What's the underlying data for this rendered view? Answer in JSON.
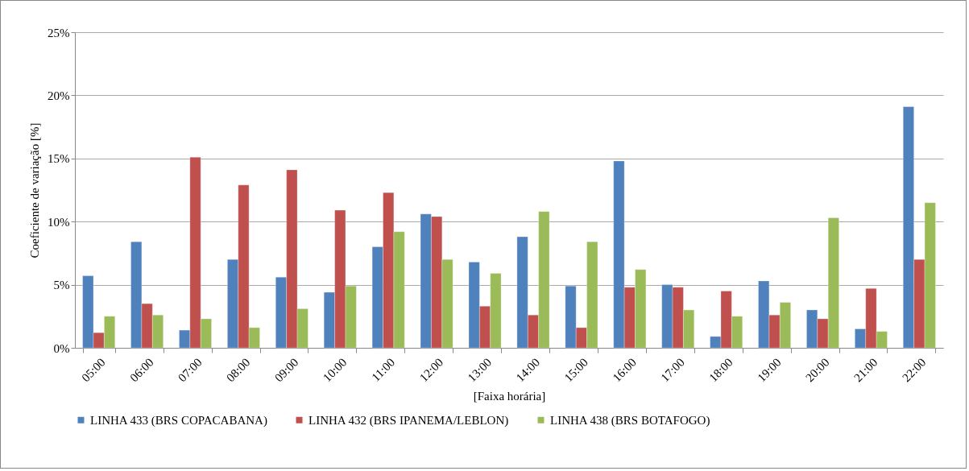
{
  "chart_data": {
    "type": "bar",
    "xlabel": "[Faixa horária]",
    "ylabel": "Coeficiente de variação [%]",
    "categories": [
      "05:00",
      "06:00",
      "07:00",
      "08:00",
      "09:00",
      "10:00",
      "11:00",
      "12:00",
      "13:00",
      "14:00",
      "15:00",
      "16:00",
      "17:00",
      "18:00",
      "19:00",
      "20:00",
      "21:00",
      "22:00"
    ],
    "series": [
      {
        "name": "LINHA 433 (BRS COPACABANA)",
        "color": "#4f81bd",
        "values": [
          5.7,
          8.4,
          1.4,
          7.0,
          5.6,
          4.4,
          8.0,
          10.6,
          6.8,
          8.8,
          4.9,
          14.8,
          5.0,
          0.9,
          5.3,
          3.0,
          1.5,
          19.1
        ]
      },
      {
        "name": "LINHA 432 (BRS IPANEMA/LEBLON)",
        "color": "#c0504d",
        "values": [
          1.2,
          3.5,
          15.1,
          12.9,
          14.1,
          10.9,
          12.3,
          10.4,
          3.3,
          2.6,
          1.6,
          4.8,
          4.8,
          4.5,
          2.6,
          2.3,
          4.7,
          7.0
        ]
      },
      {
        "name": "LINHA 438 (BRS BOTAFOGO)",
        "color": "#9bbb59",
        "values": [
          2.5,
          2.6,
          2.3,
          1.6,
          3.1,
          4.9,
          9.2,
          7.0,
          5.9,
          10.8,
          8.4,
          6.2,
          3.0,
          2.5,
          3.6,
          10.3,
          1.3,
          11.5
        ]
      }
    ],
    "ylim": [
      0,
      25
    ],
    "yticks": [
      {
        "value": 0,
        "label": "0%"
      },
      {
        "value": 5,
        "label": "5%"
      },
      {
        "value": 10,
        "label": "10%"
      },
      {
        "value": 15,
        "label": "15%"
      },
      {
        "value": 20,
        "label": "20%"
      },
      {
        "value": 25,
        "label": "25%"
      }
    ],
    "grid": "y",
    "legend": "bottom"
  }
}
